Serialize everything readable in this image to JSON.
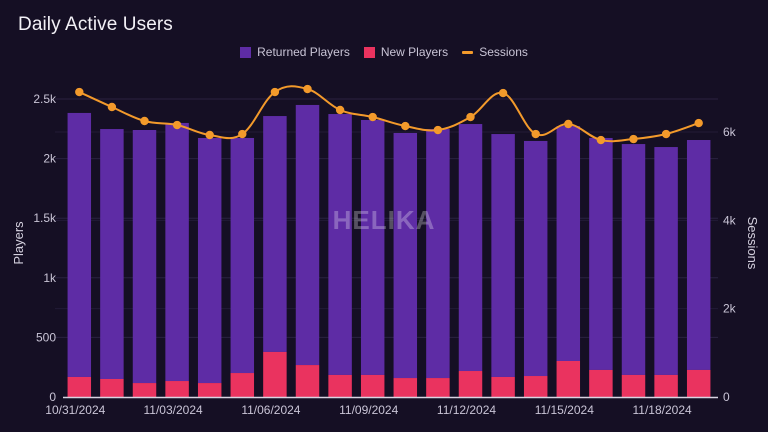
{
  "title": "Daily Active Users",
  "watermark": "HELIKA",
  "legend": [
    {
      "label": "Returned Players",
      "color": "#5e2ca5",
      "kind": "box"
    },
    {
      "label": "New Players",
      "color": "#ea335f",
      "kind": "box"
    },
    {
      "label": "Sessions",
      "color": "#f39a2b",
      "kind": "line"
    }
  ],
  "chart_data": {
    "type": "bar",
    "stacked": true,
    "title": "Daily Active Users",
    "xlabel": "",
    "ylabel": "Players",
    "y2label": "Sessions",
    "ylim": [
      0,
      2500
    ],
    "y2lim": [
      0,
      6000
    ],
    "yticks": [
      "0",
      "500",
      "1k",
      "1.5k",
      "2k",
      "2.5k"
    ],
    "ytick_values": [
      0,
      500,
      1000,
      1500,
      2000,
      2500
    ],
    "y2ticks": [
      "0",
      "2k",
      "4k",
      "6k"
    ],
    "y2tick_values": [
      0,
      2000,
      4000,
      6000
    ],
    "grid": true,
    "legend_position": "top-center",
    "categories": [
      "10/31/2024",
      "11/01/2024",
      "11/02/2024",
      "11/03/2024",
      "11/04/2024",
      "11/05/2024",
      "11/06/2024",
      "11/07/2024",
      "11/08/2024",
      "11/09/2024",
      "11/10/2024",
      "11/11/2024",
      "11/12/2024",
      "11/13/2024",
      "11/14/2024",
      "11/15/2024",
      "11/16/2024",
      "11/17/2024",
      "11/18/2024",
      "11/19/2024"
    ],
    "xtick_labels": [
      "10/31/2024",
      "11/03/2024",
      "11/06/2024",
      "11/09/2024",
      "11/12/2024",
      "11/15/2024",
      "11/18/2024"
    ],
    "xtick_indices": [
      0,
      3,
      6,
      9,
      12,
      15,
      18
    ],
    "series": [
      {
        "name": "New Players",
        "type": "bar",
        "axis": "left",
        "color": "#ea335f",
        "values": [
          168,
          151,
          117,
          134,
          117,
          201,
          378,
          268,
          185,
          185,
          159,
          159,
          218,
          168,
          176,
          302,
          227,
          185,
          185,
          227
        ]
      },
      {
        "name": "Returned Players",
        "type": "bar",
        "axis": "left",
        "color": "#5e2ca5",
        "values": [
          2215,
          2097,
          2123,
          2165,
          2056,
          1972,
          1979,
          2182,
          2189,
          2139,
          2056,
          2089,
          2072,
          2038,
          1972,
          1971,
          1946,
          1937,
          1912,
          1929
        ]
      },
      {
        "name": "Sessions",
        "type": "line",
        "axis": "right",
        "color": "#f39a2b",
        "values": [
          6905,
          6566,
          6249,
          6158,
          5932,
          5954,
          6905,
          6973,
          6498,
          6339,
          6135,
          6045,
          6339,
          6882,
          5954,
          6181,
          5818,
          5841,
          5954,
          6203
        ]
      }
    ]
  }
}
